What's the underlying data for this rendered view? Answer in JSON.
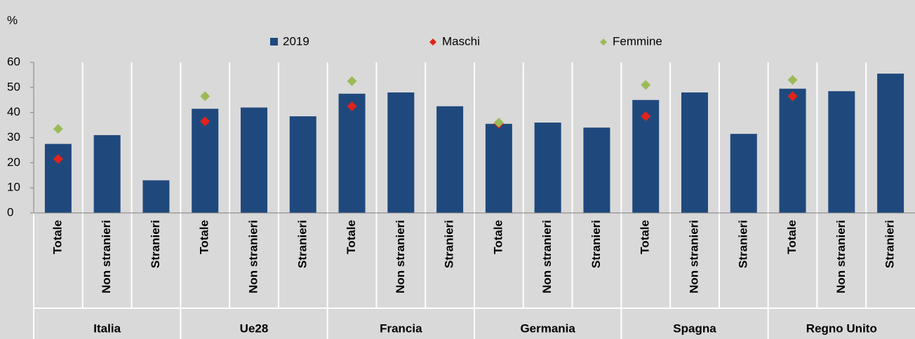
{
  "chart_data": {
    "type": "bar",
    "y_unit": "%",
    "groups": [
      "Italia",
      "Ue28",
      "Francia",
      "Germania",
      "Spagna",
      "Regno Unito"
    ],
    "categories": [
      "Totale",
      "Non stranieri",
      "Stranieri",
      "Totale",
      "Non stranieri",
      "Stranieri",
      "Totale",
      "Non stranieri",
      "Stranieri",
      "Totale",
      "Non stranieri",
      "Stranieri",
      "Totale",
      "Non stranieri",
      "Stranieri",
      "Totale",
      "Non stranieri",
      "Stranieri"
    ],
    "series": [
      {
        "name": "2019",
        "color": "#1f497d",
        "marker": "bar",
        "values": [
          27.5,
          31,
          13,
          41.5,
          42,
          38.5,
          47.5,
          48,
          42.5,
          35.5,
          36,
          34,
          45,
          48,
          31.5,
          49.5,
          48.5,
          55.5
        ]
      },
      {
        "name": "Maschi",
        "color": "#e2231a",
        "marker": "diamond",
        "values": [
          21.5,
          null,
          null,
          36.5,
          null,
          null,
          42.5,
          null,
          null,
          35.5,
          null,
          null,
          38.5,
          null,
          null,
          46.5,
          null,
          null
        ]
      },
      {
        "name": "Femmine",
        "color": "#9bbb59",
        "marker": "diamond",
        "values": [
          33.5,
          null,
          null,
          46.5,
          null,
          null,
          52.5,
          null,
          null,
          36,
          null,
          null,
          51,
          null,
          null,
          53,
          null,
          null
        ]
      }
    ],
    "ylim": [
      0,
      60
    ],
    "yticks": [
      0,
      10,
      20,
      30,
      40,
      50,
      60
    ],
    "grid": false
  }
}
